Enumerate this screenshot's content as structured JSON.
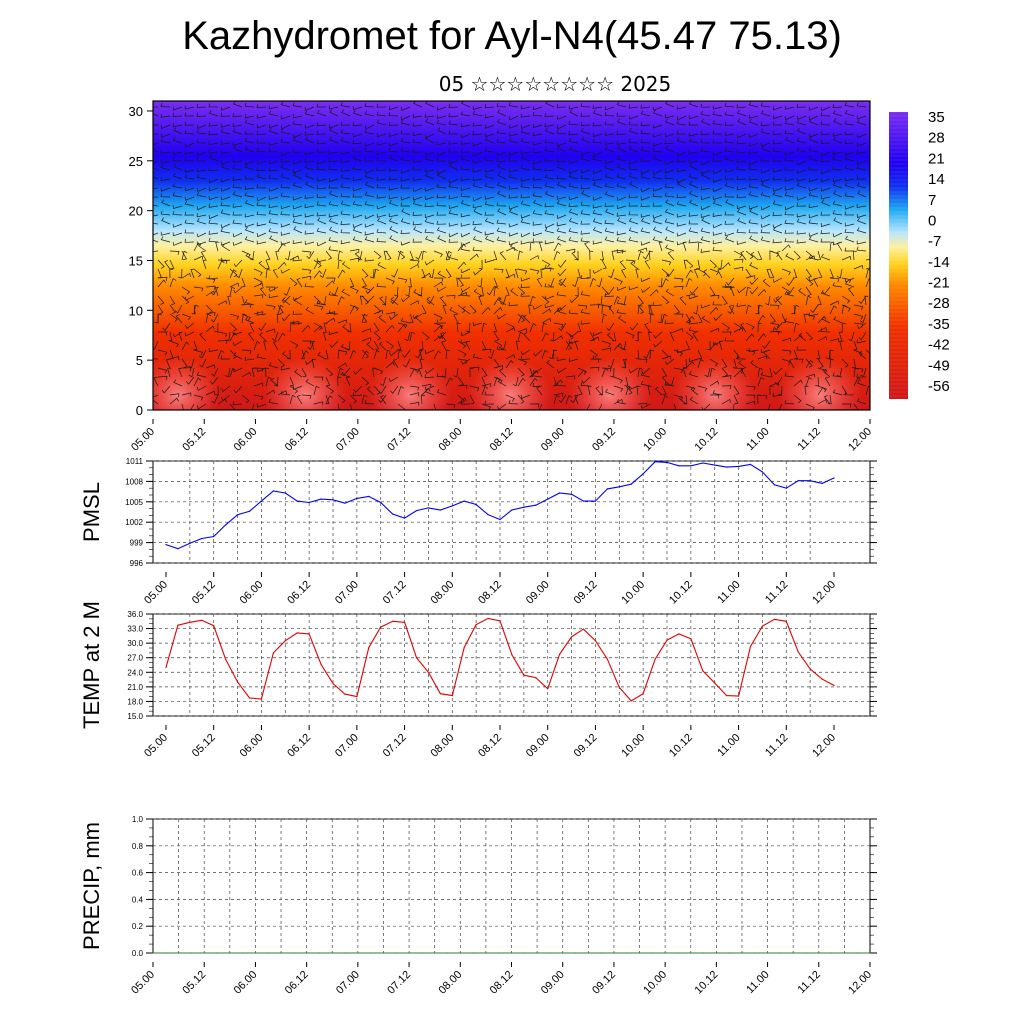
{
  "title": "Kazhydromet for Ayl-N4(45.47 75.13)",
  "subtitle": "05 ☆☆☆☆☆☆☆☆ 2025",
  "colors": {
    "pmsl_line": "#0000ff",
    "temp_line": "#e00000",
    "precip_baseline": "#2f7a2f"
  },
  "chart_data": [
    {
      "type": "heatmap",
      "title": "",
      "xlabel": "",
      "ylabel": "",
      "x_tick_labels": [
        "05.00",
        "05.12",
        "06.00",
        "06.12",
        "07.00",
        "07.12",
        "08.00",
        "08.12",
        "09.00",
        "09.12",
        "10.00",
        "10.12",
        "11.00",
        "11.12",
        "12.00"
      ],
      "y_ticks": [
        0,
        5,
        10,
        15,
        20,
        25,
        30
      ],
      "ylim": [
        0,
        31
      ],
      "colorbar_labels": [
        "35",
        "28",
        "21",
        "14",
        "7",
        "0",
        "-7",
        "-14",
        "-21",
        "-28",
        "-35",
        "-42",
        "-49",
        "-56"
      ],
      "overlay": "wind barbs"
    },
    {
      "type": "line",
      "ylabel": "PMSL",
      "y_ticks": [
        996,
        999,
        1002,
        1005,
        1008,
        1011
      ],
      "ylim": [
        996,
        1011
      ],
      "x_tick_labels": [
        "05.00",
        "05.12",
        "06.00",
        "06.12",
        "07.00",
        "07.12",
        "08.00",
        "08.12",
        "09.00",
        "09.12",
        "10.00",
        "10.12",
        "11.00",
        "11.12",
        "12.00"
      ],
      "grid": true,
      "series": [
        {
          "values": [
            998.7,
            998.1,
            998.9,
            999.6,
            999.9,
            1001.6,
            1003.1,
            1003.6,
            1005.1,
            1006.6,
            1006.3,
            1005.1,
            1004.9,
            1005.4,
            1005.3,
            1004.8,
            1005.5,
            1005.8,
            1004.9,
            1003.2,
            1002.6,
            1003.7,
            1004.1,
            1003.8,
            1004.4,
            1005.1,
            1004.6,
            1003.1,
            1002.4,
            1003.8,
            1004.2,
            1004.5,
            1005.4,
            1006.3,
            1006.1,
            1005.1,
            1005.1,
            1006.9,
            1007.2,
            1007.6,
            1009.1,
            1010.9,
            1010.8,
            1010.3,
            1010.3,
            1010.7,
            1010.4,
            1010.1,
            1010.2,
            1010.5,
            1009.4,
            1007.5,
            1007.0,
            1008.1,
            1008.1,
            1007.7,
            1008.5
          ]
        }
      ]
    },
    {
      "type": "line",
      "ylabel": "TEMP at 2 M",
      "y_ticks": [
        "15.0",
        "18.0",
        "21.0",
        "24.0",
        "27.0",
        "30.0",
        "33.0",
        "36.0"
      ],
      "ylim": [
        15,
        36
      ],
      "x_tick_labels": [
        "05.00",
        "05.12",
        "06.00",
        "06.12",
        "07.00",
        "07.12",
        "08.00",
        "08.12",
        "09.00",
        "09.12",
        "10.00",
        "10.12",
        "11.00",
        "11.12",
        "12.00"
      ],
      "grid": true,
      "series": [
        {
          "values": [
            25.0,
            33.7,
            34.3,
            34.7,
            33.6,
            26.7,
            22.0,
            18.7,
            18.5,
            28.0,
            30.5,
            32.1,
            31.9,
            25.6,
            21.7,
            19.5,
            19.0,
            29.1,
            33.3,
            34.5,
            34.3,
            27.0,
            24.0,
            19.6,
            19.2,
            29.1,
            33.8,
            35.1,
            34.6,
            27.6,
            23.4,
            22.9,
            20.6,
            27.7,
            31.3,
            32.9,
            30.5,
            26.7,
            20.9,
            18.1,
            19.6,
            26.7,
            30.6,
            31.9,
            30.9,
            24.3,
            21.8,
            19.2,
            19.1,
            29.3,
            33.5,
            34.9,
            34.5,
            28.2,
            24.7,
            22.6,
            21.3
          ]
        }
      ]
    },
    {
      "type": "line",
      "ylabel": "PRECIP, mm",
      "y_ticks": [
        "0.0",
        "0.2",
        "0.4",
        "0.6",
        "0.8",
        "1.0"
      ],
      "ylim": [
        0,
        1
      ],
      "x_tick_labels": [
        "05.00",
        "05.12",
        "06.00",
        "06.12",
        "07.00",
        "07.12",
        "08.00",
        "08.12",
        "09.00",
        "09.12",
        "10.00",
        "10.12",
        "11.00",
        "11.12",
        "12.00"
      ],
      "grid": true,
      "series": [
        {
          "values": [
            0,
            0,
            0,
            0,
            0,
            0,
            0,
            0,
            0,
            0,
            0,
            0,
            0,
            0,
            0,
            0,
            0,
            0,
            0,
            0,
            0,
            0,
            0,
            0,
            0,
            0,
            0,
            0,
            0,
            0,
            0,
            0,
            0,
            0,
            0,
            0,
            0,
            0,
            0,
            0,
            0,
            0,
            0,
            0,
            0,
            0,
            0,
            0,
            0,
            0,
            0,
            0,
            0,
            0,
            0,
            0,
            0
          ]
        }
      ]
    }
  ]
}
